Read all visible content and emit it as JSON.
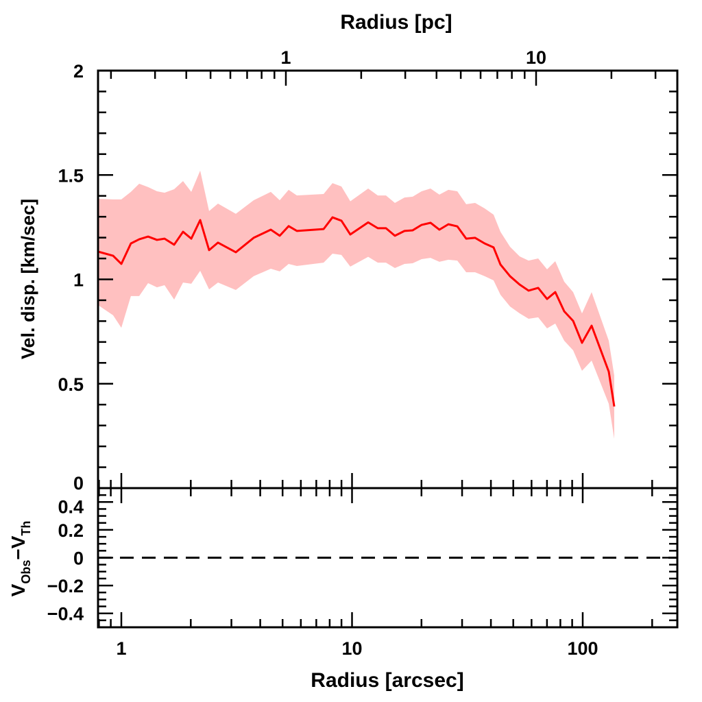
{
  "chart_data": [
    {
      "type": "area",
      "panel": "main",
      "xlabel": "Radius [arcsec]",
      "x2label": "Radius [pc]",
      "ylabel": "Vel. disp. [km/sec]",
      "xscale": "log",
      "xlim": [
        0.79,
        257
      ],
      "x2lim": [
        0.178,
        36.7
      ],
      "ylim": [
        0,
        2
      ],
      "xtick_labels": [
        "1",
        "10",
        "100"
      ],
      "x2tick_labels": [
        "1",
        "10"
      ],
      "ytick_labels": [
        "0",
        "0.5",
        "1",
        "1.5",
        "2"
      ],
      "grid": false,
      "colors": {
        "line": "#ff0000",
        "band": "#ffc0c0",
        "axes": "#000000"
      },
      "x": [
        0.792,
        0.921,
        1.0,
        1.1,
        1.195,
        1.306,
        1.427,
        1.539,
        1.694,
        1.851,
        2.01,
        2.197,
        2.401,
        2.624,
        3.135,
        3.746,
        4.445,
        4.859,
        5.311,
        5.765,
        7.53,
        8.228,
        8.995,
        9.83,
        11.75,
        12.93,
        14.03,
        15.34,
        16.88,
        18.32,
        20.03,
        21.89,
        23.92,
        26.16,
        28.59,
        31.25,
        34.16,
        37.58,
        41.08,
        44.0,
        48.42,
        53.29,
        58.25,
        64.11,
        70.05,
        76.04,
        83.14,
        90.88,
        99.3,
        109.3,
        129.7,
        137.0
      ],
      "series": [
        {
          "role": "line",
          "values": [
            1.133,
            1.113,
            1.074,
            1.172,
            1.192,
            1.205,
            1.189,
            1.195,
            1.166,
            1.228,
            1.195,
            1.284,
            1.14,
            1.176,
            1.13,
            1.199,
            1.238,
            1.209,
            1.255,
            1.232,
            1.241,
            1.297,
            1.281,
            1.215,
            1.273,
            1.245,
            1.245,
            1.209,
            1.232,
            1.235,
            1.261,
            1.271,
            1.238,
            1.264,
            1.254,
            1.195,
            1.199,
            1.172,
            1.153,
            1.071,
            1.015,
            0.975,
            0.946,
            0.959,
            0.906,
            0.939,
            0.847,
            0.801,
            0.696,
            0.778,
            0.558,
            0.391
          ]
        },
        {
          "role": "upper",
          "values": [
            1.386,
            1.383,
            1.383,
            1.419,
            1.458,
            1.442,
            1.422,
            1.415,
            1.432,
            1.471,
            1.419,
            1.521,
            1.327,
            1.363,
            1.314,
            1.379,
            1.419,
            1.379,
            1.429,
            1.402,
            1.409,
            1.461,
            1.445,
            1.374,
            1.435,
            1.402,
            1.402,
            1.366,
            1.392,
            1.396,
            1.422,
            1.435,
            1.406,
            1.429,
            1.422,
            1.36,
            1.366,
            1.34,
            1.31,
            1.228,
            1.156,
            1.11,
            1.09,
            1.1,
            1.048,
            1.087,
            0.989,
            0.939,
            0.837,
            0.939,
            0.706,
            0.539
          ]
        },
        {
          "role": "lower",
          "values": [
            0.877,
            0.828,
            0.768,
            0.92,
            0.92,
            0.982,
            0.962,
            0.972,
            0.903,
            0.985,
            0.979,
            1.041,
            0.952,
            0.985,
            0.949,
            1.015,
            1.051,
            1.038,
            1.074,
            1.064,
            1.08,
            1.123,
            1.117,
            1.061,
            1.108,
            1.08,
            1.08,
            1.054,
            1.074,
            1.077,
            1.097,
            1.103,
            1.084,
            1.094,
            1.09,
            1.034,
            1.034,
            1.015,
            0.995,
            0.926,
            0.87,
            0.837,
            0.811,
            0.818,
            0.765,
            0.788,
            0.706,
            0.66,
            0.562,
            0.611,
            0.404,
            0.236
          ]
        }
      ]
    },
    {
      "type": "line",
      "panel": "residual",
      "ylabel_main": "V",
      "ylabel_sub1": "Obs",
      "ylabel_mid": "−V",
      "ylabel_sub2": "Th",
      "ylim": [
        -0.5,
        0.5
      ],
      "ytick_labels": [
        "0.4",
        "0.2",
        "0",
        "−0.2",
        "−0.4"
      ],
      "reference_line": {
        "y": 0,
        "style": "dashed"
      }
    }
  ]
}
